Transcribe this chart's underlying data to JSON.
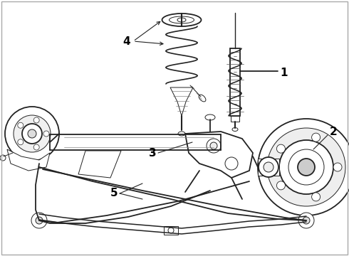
{
  "background_color": "#ffffff",
  "line_color": "#222222",
  "label_color": "#000000",
  "figsize": [
    4.9,
    3.6
  ],
  "dpi": 100,
  "label_fontsize": 11,
  "label_fontweight": "bold",
  "lw_main": 1.3,
  "lw_thin": 0.7,
  "lw_thick": 2.0
}
